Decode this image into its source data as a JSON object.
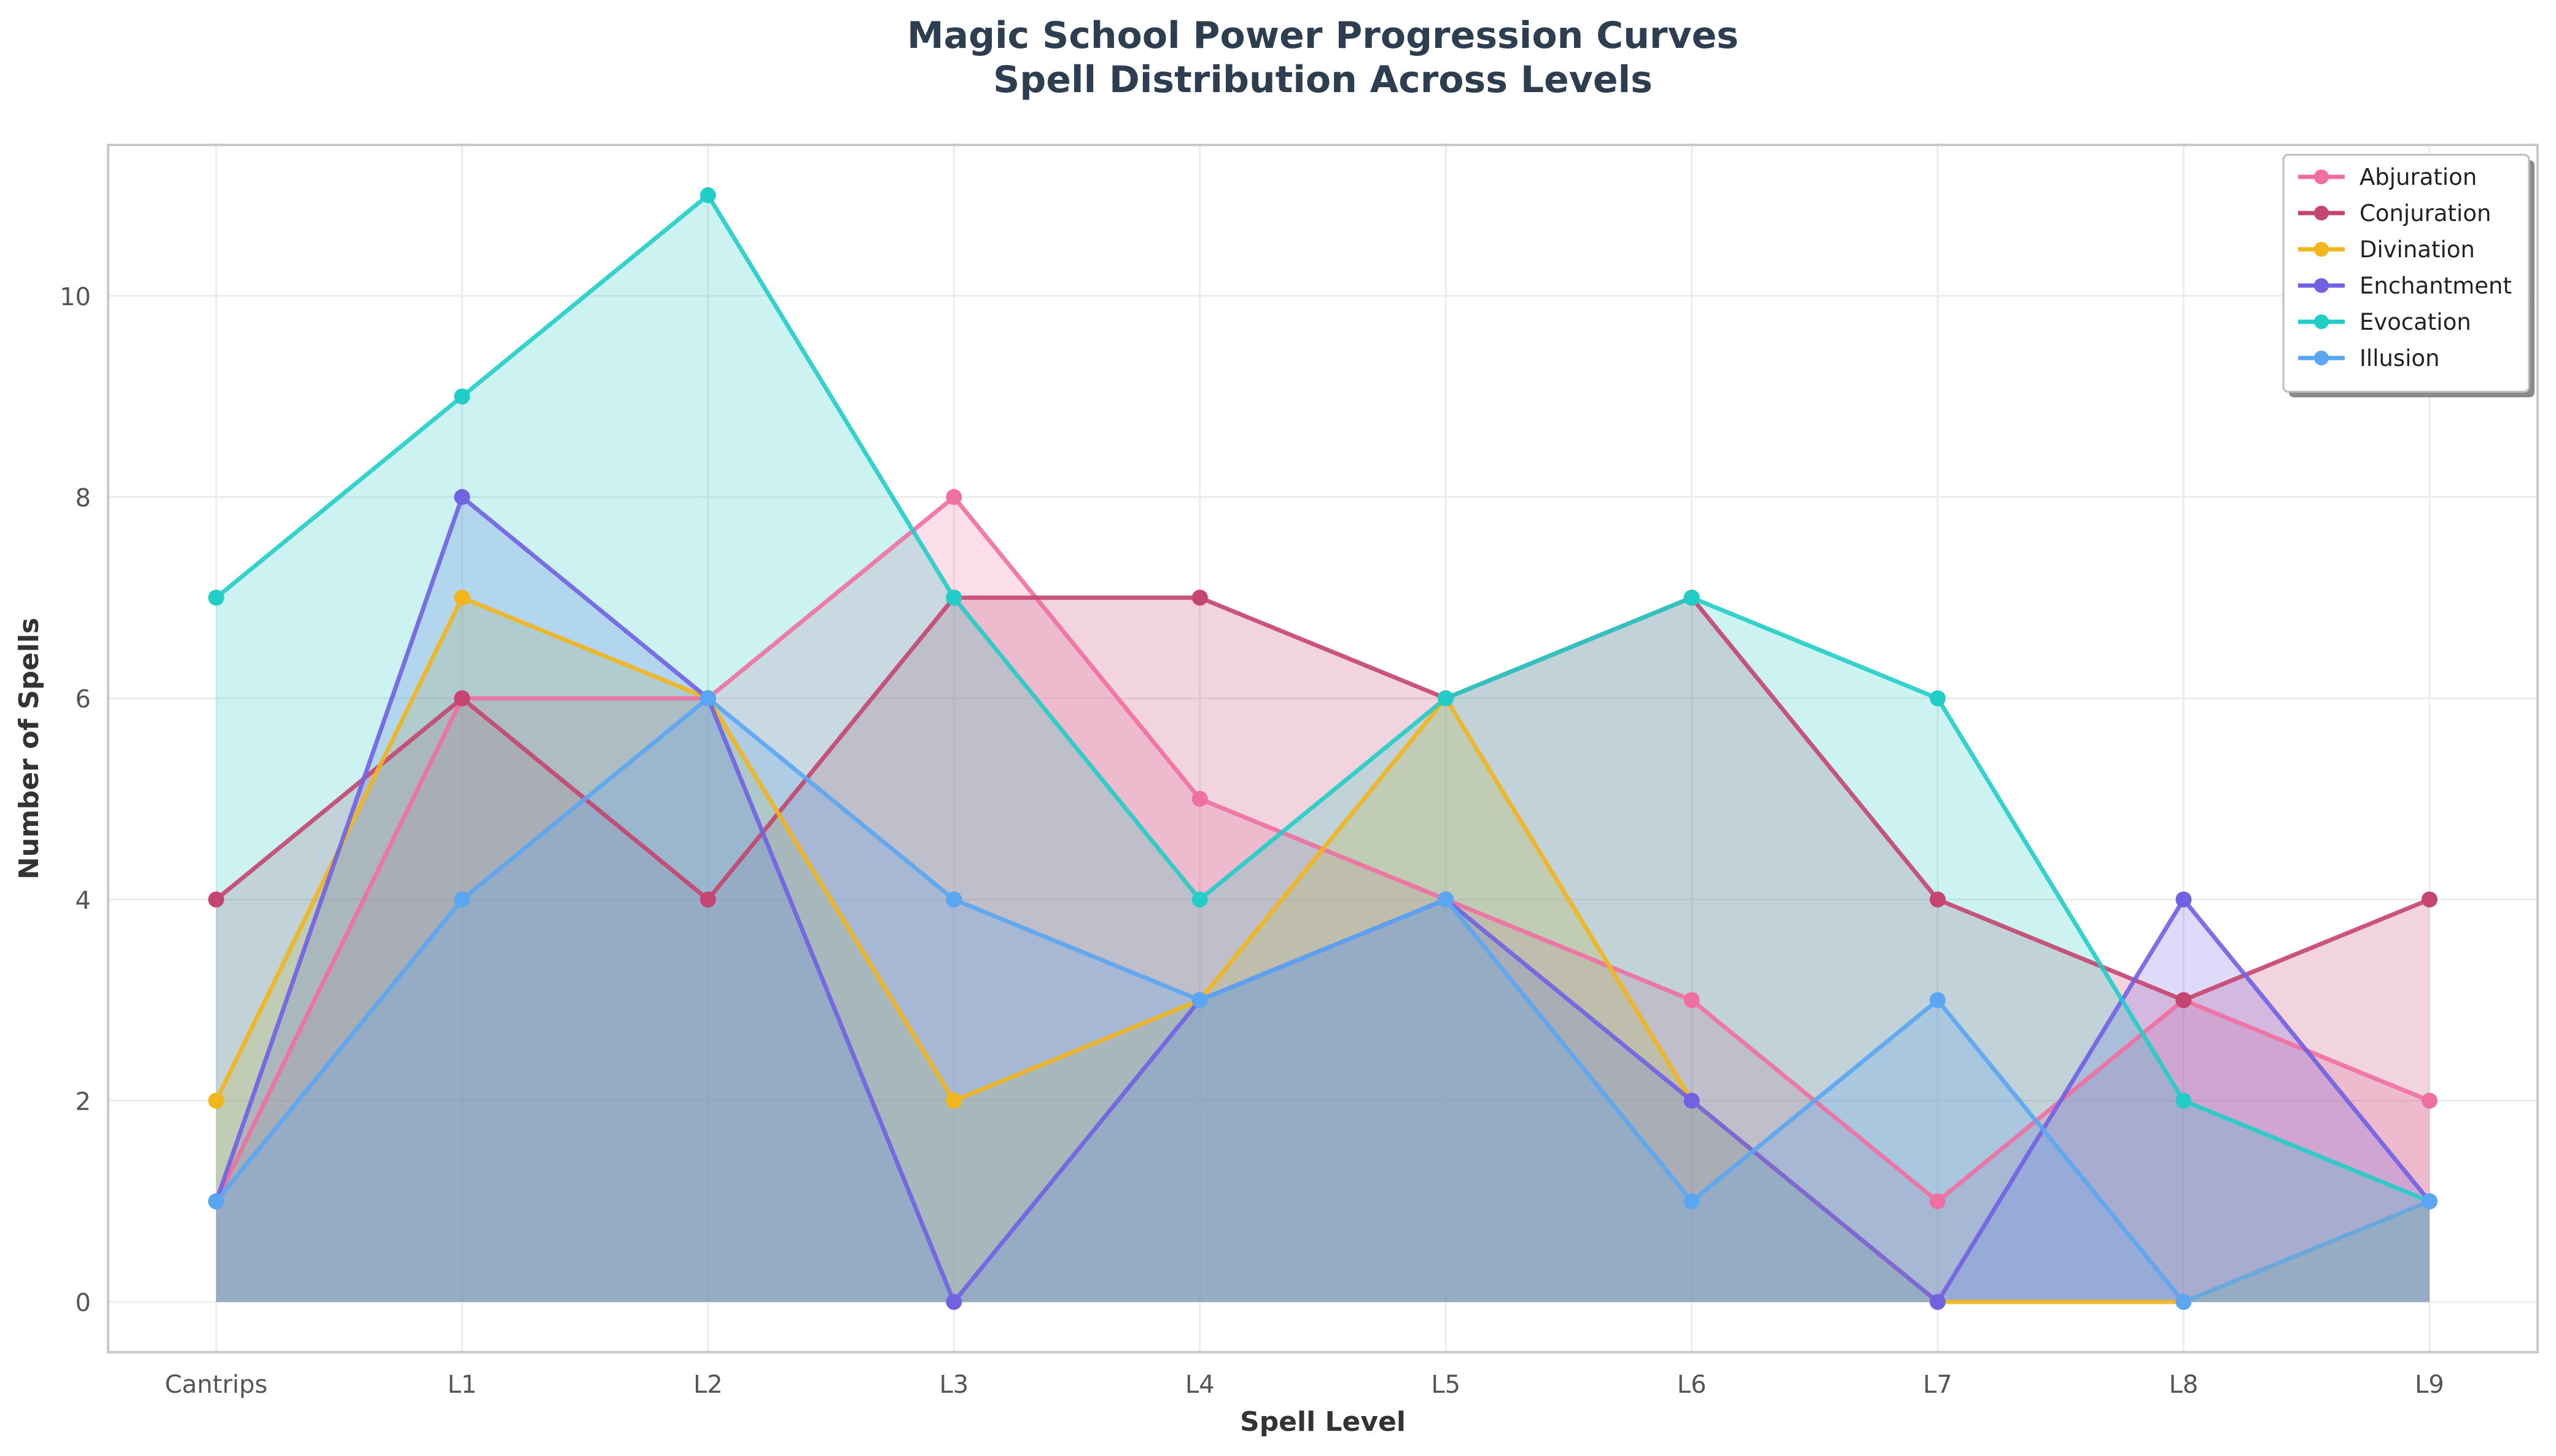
{
  "chart_data": {
    "type": "area",
    "title": "Magic School Power Progression Curves",
    "subtitle": "Spell Distribution Across Levels",
    "xlabel": "Spell Level",
    "ylabel": "Number of Spells",
    "categories": [
      "Cantrips",
      "L1",
      "L2",
      "L3",
      "L4",
      "L5",
      "L6",
      "L7",
      "L8",
      "L9"
    ],
    "ylim": [
      -0.5,
      11.5
    ],
    "yticks": [
      0,
      2,
      4,
      6,
      8,
      10
    ],
    "grid": true,
    "legend_position": "top-right",
    "series": [
      {
        "name": "Abjuration",
        "color": "#f06fa1",
        "values": [
          1,
          6,
          6,
          8,
          5,
          4,
          3,
          1,
          3,
          2
        ]
      },
      {
        "name": "Conjuration",
        "color": "#c4456f",
        "values": [
          4,
          6,
          4,
          7,
          7,
          6,
          7,
          4,
          3,
          4
        ]
      },
      {
        "name": "Divination",
        "color": "#f2b51c",
        "values": [
          2,
          7,
          6,
          2,
          3,
          6,
          2,
          0,
          0,
          1
        ]
      },
      {
        "name": "Enchantment",
        "color": "#7161e3",
        "values": [
          1,
          8,
          6,
          0,
          3,
          4,
          2,
          0,
          4,
          1
        ]
      },
      {
        "name": "Evocation",
        "color": "#22cdc8",
        "values": [
          7,
          9,
          11,
          7,
          4,
          6,
          7,
          6,
          2,
          1
        ]
      },
      {
        "name": "Illusion",
        "color": "#5aa6f2",
        "values": [
          1,
          4,
          6,
          4,
          3,
          4,
          1,
          3,
          0,
          1
        ]
      }
    ]
  }
}
